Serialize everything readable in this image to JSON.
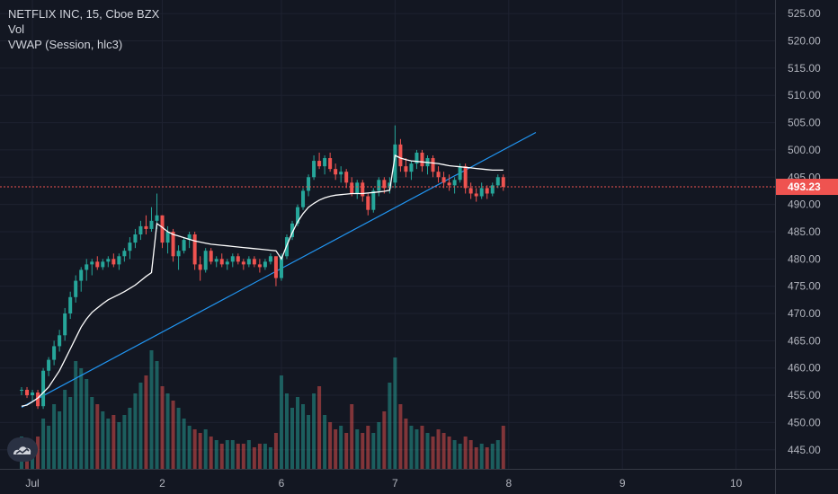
{
  "legend": {
    "symbol_line": "NETFLIX INC, 15, Cboe BZX",
    "volume_label": "Vol",
    "vwap_label": "VWAP (Session, hlc3)"
  },
  "colors": {
    "background": "#131722",
    "up": "#26a69a",
    "down": "#ef5350",
    "vwap": "#ffffff",
    "trendline": "#2196f3",
    "price_tag": "#ef5350",
    "axis_text": "#b2b5be"
  },
  "icons": {
    "logo": "tradingview-cloud-icon"
  },
  "chart_data": {
    "type": "candlestick",
    "title": "NETFLIX INC, 15, Cboe BZX",
    "interval": "15",
    "ylim": [
      441.5,
      527.5
    ],
    "y_ticks": [
      "445.00",
      "450.00",
      "455.00",
      "460.00",
      "465.00",
      "470.00",
      "475.00",
      "480.00",
      "485.00",
      "490.00",
      "495.00",
      "500.00",
      "505.00",
      "510.00",
      "515.00",
      "520.00",
      "525.00"
    ],
    "x_ticks": [
      {
        "label": "Jul",
        "bar": 2
      },
      {
        "label": "2",
        "bar": 26
      },
      {
        "label": "6",
        "bar": 48
      },
      {
        "label": "7",
        "bar": 69
      },
      {
        "label": "8",
        "bar": 90
      },
      {
        "label": "9",
        "bar": 111
      },
      {
        "label": "10",
        "bar": 132
      }
    ],
    "last_price": "493.23",
    "grid": true,
    "ohlc": [
      [
        456,
        456.5,
        455,
        456
      ],
      [
        456,
        456.5,
        454.5,
        455
      ],
      [
        455,
        456,
        454,
        455.5
      ],
      [
        455.5,
        456,
        452.5,
        453
      ],
      [
        453,
        460,
        452.5,
        459.5
      ],
      [
        459.5,
        462,
        458.5,
        461.5
      ],
      [
        461.5,
        465,
        460.5,
        464
      ],
      [
        464,
        467,
        463,
        466
      ],
      [
        466,
        471,
        465,
        470
      ],
      [
        470,
        474,
        469,
        473
      ],
      [
        473,
        477,
        472,
        476
      ],
      [
        476,
        478.5,
        474,
        478
      ],
      [
        478,
        480,
        476,
        479
      ],
      [
        479,
        480,
        477,
        479.5
      ],
      [
        479.5,
        480.5,
        478,
        478.5
      ],
      [
        478.5,
        480,
        478,
        479.5
      ],
      [
        479.5,
        480.5,
        478.5,
        480
      ],
      [
        480,
        481,
        478.5,
        479
      ],
      [
        479,
        481,
        478,
        480.5
      ],
      [
        480.5,
        482,
        479.5,
        481.5
      ],
      [
        481.5,
        484,
        480,
        483
      ],
      [
        483,
        485.5,
        482,
        484.5
      ],
      [
        484.5,
        487,
        483.5,
        486
      ],
      [
        486,
        488,
        484.5,
        485.5
      ],
      [
        485.5,
        489.5,
        485,
        487
      ],
      [
        487,
        492,
        485.5,
        488
      ],
      [
        488,
        488,
        482,
        483
      ],
      [
        483,
        486,
        481,
        485
      ],
      [
        485,
        485.5,
        479.5,
        480.5
      ],
      [
        480.5,
        482.5,
        478,
        481.5
      ],
      [
        481.5,
        484,
        481,
        483.5
      ],
      [
        483.5,
        485,
        482,
        484.5
      ],
      [
        484.5,
        485,
        478,
        479
      ],
      [
        479,
        480.5,
        476,
        478
      ],
      [
        478,
        482,
        477.5,
        481.5
      ],
      [
        481.5,
        482,
        479,
        479.5
      ],
      [
        479.5,
        480.5,
        478.5,
        480
      ],
      [
        480,
        481,
        478.5,
        479
      ],
      [
        479,
        480,
        478,
        479.5
      ],
      [
        479.5,
        481,
        478.5,
        480.5
      ],
      [
        480.5,
        481,
        479,
        479.5
      ],
      [
        479.5,
        480,
        478,
        479
      ],
      [
        479,
        480.5,
        478.5,
        480
      ],
      [
        480,
        480.5,
        478.5,
        479
      ],
      [
        479,
        480,
        477.5,
        478.5
      ],
      [
        478.5,
        480,
        478,
        479.5
      ],
      [
        479.5,
        481,
        479,
        480.5
      ],
      [
        480.5,
        480.5,
        475,
        476.5
      ],
      [
        476.5,
        481,
        476,
        480.5
      ],
      [
        480.5,
        484.5,
        480,
        484
      ],
      [
        484,
        487,
        483.5,
        486.5
      ],
      [
        486.5,
        490,
        486,
        489.5
      ],
      [
        489.5,
        493,
        489,
        492.5
      ],
      [
        492.5,
        495.5,
        491.5,
        495
      ],
      [
        495,
        499,
        494.5,
        498
      ],
      [
        498,
        499.5,
        496.5,
        497
      ],
      [
        497,
        499,
        495.5,
        498.5
      ],
      [
        498.5,
        499.5,
        496,
        496.5
      ],
      [
        496.5,
        497.5,
        494.5,
        495.5
      ],
      [
        495.5,
        497,
        494,
        496
      ],
      [
        496,
        496.5,
        493,
        494
      ],
      [
        494,
        495,
        491.5,
        492
      ],
      [
        492,
        494.5,
        491,
        494
      ],
      [
        494,
        494.5,
        490.5,
        491.5
      ],
      [
        491.5,
        492,
        488,
        489
      ],
      [
        489,
        493,
        488.5,
        492.5
      ],
      [
        492.5,
        495,
        491.5,
        494.5
      ],
      [
        494.5,
        495,
        492,
        493
      ],
      [
        493,
        495,
        492,
        494
      ],
      [
        494,
        504.5,
        493,
        501
      ],
      [
        501,
        502,
        496,
        497
      ],
      [
        497,
        498.5,
        495,
        496
      ],
      [
        496,
        498,
        494.5,
        497.5
      ],
      [
        497.5,
        500,
        496.5,
        499.5
      ],
      [
        499.5,
        500,
        496,
        497
      ],
      [
        497,
        499,
        495.5,
        498.5
      ],
      [
        498.5,
        499,
        495,
        496
      ],
      [
        496,
        497,
        494,
        495
      ],
      [
        495,
        496,
        493,
        494
      ],
      [
        494,
        495.5,
        492.5,
        493.5
      ],
      [
        493.5,
        495,
        492,
        494.5
      ],
      [
        494.5,
        497.5,
        494,
        497
      ],
      [
        497,
        497.5,
        492,
        493
      ],
      [
        493,
        494,
        491,
        492
      ],
      [
        492,
        493,
        490.5,
        491.5
      ],
      [
        491.5,
        494,
        491,
        493
      ],
      [
        493,
        493.5,
        491,
        492
      ],
      [
        492,
        494,
        491.5,
        493.5
      ],
      [
        493.5,
        495.5,
        493,
        495
      ],
      [
        495,
        495.5,
        492.5,
        493.23
      ]
    ],
    "vwap": [
      453,
      453.2,
      453.8,
      454.5,
      455.5,
      456.5,
      458,
      459.5,
      461.5,
      463.5,
      465.5,
      467.5,
      469,
      470.2,
      471,
      471.8,
      472.5,
      473,
      473.5,
      474,
      474.6,
      475.2,
      476,
      476.8,
      477.5,
      486.5,
      485.8,
      485,
      484.5,
      484.2,
      483.9,
      483.6,
      483.3,
      483.1,
      482.9,
      482.7,
      482.6,
      482.5,
      482.4,
      482.3,
      482.2,
      482.1,
      482,
      481.9,
      481.8,
      481.7,
      481.6,
      481.5,
      480,
      482.5,
      484.8,
      486.8,
      488.3,
      489.5,
      490.2,
      490.8,
      491.2,
      491.5,
      491.7,
      491.8,
      491.9,
      492,
      492,
      492,
      492.1,
      492.2,
      492.3,
      492.4,
      492.6,
      499,
      498.5,
      498.2,
      498,
      497.9,
      497.8,
      497.7,
      497.6,
      497.5,
      497.3,
      497.1,
      497,
      496.9,
      496.8,
      496.7,
      496.6,
      496.5,
      496.4,
      496.3,
      496.3,
      496.3
    ],
    "volume": [
      9,
      8,
      7,
      9,
      14,
      12,
      18,
      16,
      22,
      20,
      30,
      28,
      25,
      20,
      18,
      16,
      14,
      15,
      13,
      15,
      17,
      21,
      24,
      26,
      33,
      30,
      23,
      21,
      19,
      17,
      14,
      12,
      11,
      10,
      11,
      9,
      8,
      7,
      8,
      8,
      7,
      7,
      8,
      6,
      7,
      7,
      6,
      10,
      26,
      21,
      17,
      20,
      18,
      15,
      21,
      23,
      15,
      13,
      11,
      12,
      10,
      18,
      11,
      10,
      12,
      10,
      13,
      16,
      24,
      31,
      18,
      14,
      12,
      11,
      12,
      10,
      9,
      11,
      10,
      9,
      8,
      7,
      9,
      8,
      6,
      7,
      6,
      7,
      8,
      12
    ],
    "trendline": {
      "from": {
        "bar": 0,
        "y": 452.8
      },
      "to": {
        "bar": 95,
        "y": 503.2
      }
    }
  }
}
